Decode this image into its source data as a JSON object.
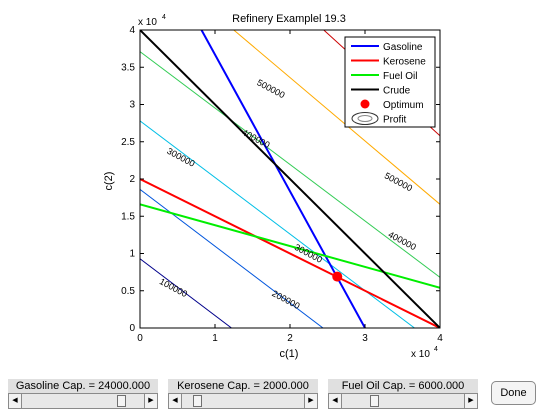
{
  "chart_data": {
    "type": "line",
    "title": "Refinery Examplel 19.3",
    "xlabel": "c(1)",
    "ylabel": "c(2)",
    "x_scale_label": "x 10",
    "x_scale_exp": "4",
    "y_scale_label": "x 10",
    "y_scale_exp": "4",
    "xlim": [
      0,
      4
    ],
    "ylim": [
      0,
      4
    ],
    "xticks": [
      "0",
      "1",
      "2",
      "3",
      "4"
    ],
    "yticks": [
      "0",
      "0.5",
      "1",
      "1.5",
      "2",
      "2.5",
      "3",
      "3.5",
      "4"
    ],
    "grid": false,
    "legend_position": "top-right",
    "constraints": [
      {
        "name": "Gasoline",
        "color": "#0000ff",
        "x": [
          0.82,
          3.0
        ],
        "y": [
          4.0,
          0.0
        ]
      },
      {
        "name": "Kerosene",
        "color": "#ff0000",
        "x": [
          0.0,
          4.0
        ],
        "y": [
          2.0,
          0.0
        ]
      },
      {
        "name": "Fuel Oil",
        "color": "#00ee00",
        "x": [
          0.0,
          4.0
        ],
        "y": [
          1.66,
          0.54
        ]
      },
      {
        "name": "Crude",
        "color": "#000000",
        "x": [
          0.0,
          4.0
        ],
        "y": [
          4.0,
          0.0
        ]
      }
    ],
    "optimum": {
      "name": "Optimum",
      "color": "#ff0000",
      "x": 2.63,
      "y": 0.69
    },
    "profit_legend": "Profit",
    "contours": [
      {
        "level": "100000",
        "color": "#00008b",
        "x": [
          0.0,
          1.22
        ],
        "y": [
          0.93,
          0.0
        ]
      },
      {
        "level": "200000",
        "color": "#0055dd",
        "x": [
          0.0,
          2.44
        ],
        "y": [
          1.86,
          0.0
        ]
      },
      {
        "level": "300000",
        "color": "#00bfe6",
        "x": [
          0.0,
          3.66
        ],
        "y": [
          2.78,
          0.0
        ]
      },
      {
        "level": "400000",
        "color": "#33cc55",
        "x": [
          0.0,
          4.0
        ],
        "y": [
          3.71,
          0.68
        ]
      },
      {
        "level": "500000",
        "color": "#ffaa00",
        "x": [
          1.25,
          4.0
        ],
        "y": [
          4.0,
          1.66
        ]
      },
      {
        "level": "600000",
        "color": "#cc0000",
        "x": [
          2.45,
          4.0
        ],
        "y": [
          4.0,
          2.58
        ]
      }
    ],
    "contour_labels": [
      {
        "text": "100000",
        "x": 0.25,
        "y": 0.6,
        "rot": 28
      },
      {
        "text": "200000",
        "x": 1.75,
        "y": 0.44,
        "rot": 28
      },
      {
        "text": "300000",
        "x": 0.35,
        "y": 2.35,
        "rot": 28
      },
      {
        "text": "300000",
        "x": 2.05,
        "y": 1.06,
        "rot": 28
      },
      {
        "text": "400000",
        "x": 1.35,
        "y": 2.6,
        "rot": 28
      },
      {
        "text": "400000",
        "x": 3.3,
        "y": 1.23,
        "rot": 28
      },
      {
        "text": "500000",
        "x": 1.55,
        "y": 3.27,
        "rot": 28
      },
      {
        "text": "500000",
        "x": 3.25,
        "y": 2.02,
        "rot": 28
      }
    ]
  },
  "controls": {
    "gasoline": {
      "label": "Gasoline Cap. = 24000.000",
      "fraction": 0.82
    },
    "kerosene": {
      "label": "Kerosene Cap. = 2000.000",
      "fraction": 0.1
    },
    "fuel_oil": {
      "label": "Fuel Oil Cap. = 6000.000",
      "fraction": 0.25
    },
    "done_label": "Done"
  }
}
